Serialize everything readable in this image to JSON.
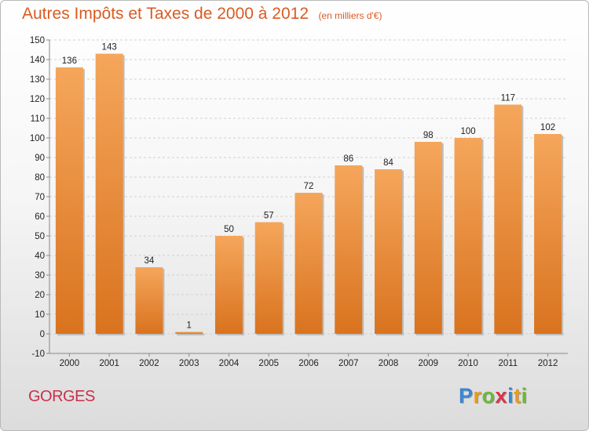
{
  "chart_data": {
    "type": "bar",
    "title": "Autres Impôts et Taxes de 2000 à 2012",
    "subtitle": "(en milliers d'€)",
    "categories": [
      "2000",
      "2001",
      "2002",
      "2003",
      "2004",
      "2005",
      "2006",
      "2007",
      "2008",
      "2009",
      "2010",
      "2011",
      "2012"
    ],
    "values": [
      136,
      143,
      34,
      1,
      50,
      57,
      72,
      86,
      84,
      98,
      100,
      117,
      102
    ],
    "y_ticks": [
      -10,
      0,
      10,
      20,
      30,
      40,
      50,
      60,
      70,
      80,
      90,
      100,
      110,
      120,
      130,
      140,
      150
    ],
    "ylim": [
      -10,
      150
    ],
    "grid": true,
    "bar_color_top": "#f5a65b",
    "bar_color_bottom": "#d9731f"
  },
  "footer": {
    "commune": "GORGES",
    "brand": "Proxiti",
    "brand_colors": [
      "#3a86d1",
      "#e89a1f",
      "#6cb83a",
      "#d8334a",
      "#3a86d1",
      "#e89a1f",
      "#6cb83a"
    ]
  }
}
